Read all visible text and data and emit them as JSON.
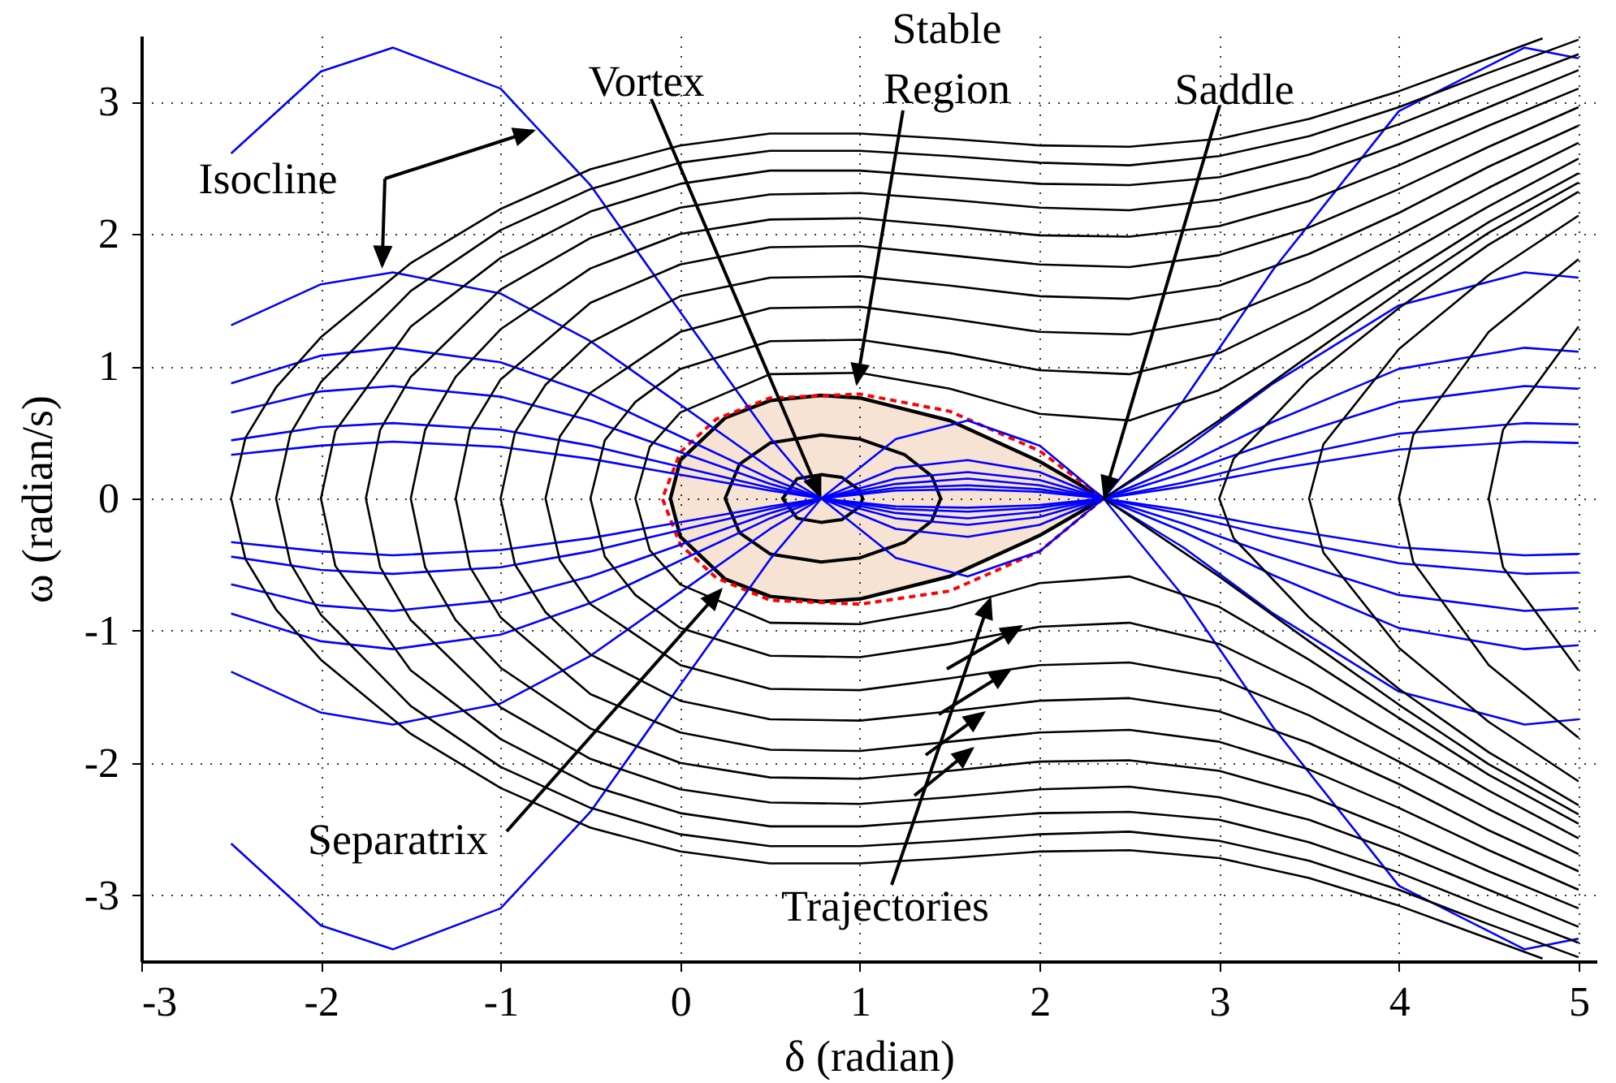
{
  "chart_data": {
    "type": "line",
    "xlabel": "δ  (radian)",
    "ylabel": "ω (radian/s)",
    "xlim": [
      -3,
      5.1
    ],
    "ylim": [
      -3.5,
      3.5
    ],
    "xticks": [
      -3,
      -2,
      -1,
      0,
      1,
      2,
      3,
      4,
      5
    ],
    "yticks": [
      -3,
      -2,
      -1,
      0,
      1,
      2,
      3
    ],
    "grid": true,
    "annotations": [
      {
        "text": "Isocline",
        "x": -1.66,
        "y": 1.74
      },
      {
        "text": "Vortex",
        "x": 0.785,
        "y": 0
      },
      {
        "text": "Stable Region",
        "x": 0.98,
        "y": 0.85
      },
      {
        "text": "Saddle",
        "x": 2.356,
        "y": 0
      },
      "Separatrix",
      {
        "text": "Trajectories",
        "x": 1.73,
        "y": -0.74
      }
    ],
    "series": [
      {
        "color": "#0000ff",
        "x": [
          -2.5,
          -2,
          -1.6,
          -1,
          -0.5,
          0,
          0.5,
          0.785,
          1.2,
          1.6,
          2,
          2.356,
          2.8,
          3.3,
          4,
          4.7,
          5
        ],
        "values": [
          2.61,
          3.23,
          3.41,
          3.1,
          2.37,
          1.41,
          0.46,
          0,
          -0.45,
          -0.59,
          -0.4,
          0,
          0.74,
          1.73,
          2.93,
          3.41,
          3.33
        ]
      },
      {
        "color": "#0000ff",
        "x": [
          -2.5,
          -2,
          -1.6,
          -1,
          -0.5,
          0,
          0.5,
          0.785,
          1.2,
          1.6,
          2,
          2.356,
          2.8,
          3.3,
          4,
          4.7,
          5
        ],
        "values": [
          -2.61,
          -3.23,
          -3.41,
          -3.1,
          -2.37,
          -1.41,
          -0.46,
          0,
          0.45,
          0.59,
          0.4,
          0,
          -0.74,
          -1.73,
          -2.93,
          -3.41,
          -3.33
        ]
      },
      {
        "color": "#0000ff",
        "x": [
          -2.5,
          -2,
          -1.6,
          -1,
          -0.5,
          0,
          0.5,
          0.785,
          1.2,
          1.6,
          2,
          2.356,
          2.8,
          3.3,
          4,
          4.7,
          5
        ],
        "values": [
          1.31,
          1.62,
          1.71,
          1.55,
          1.19,
          0.71,
          0.23,
          0,
          -0.23,
          -0.29,
          -0.2,
          0,
          0.37,
          0.87,
          1.46,
          1.71,
          1.67
        ]
      },
      {
        "color": "#0000ff",
        "x": [
          -2.5,
          -2,
          -1.6,
          -1,
          -0.5,
          0,
          0.5,
          0.785,
          1.2,
          1.6,
          2,
          2.356,
          2.8,
          3.3,
          4,
          4.7,
          5
        ],
        "values": [
          -1.31,
          -1.62,
          -1.71,
          -1.55,
          -1.19,
          -0.71,
          -0.23,
          0,
          0.23,
          0.29,
          0.2,
          0,
          -0.37,
          -0.87,
          -1.46,
          -1.71,
          -1.67
        ]
      },
      {
        "color": "#0000ff",
        "x": [
          -2.5,
          -2,
          -1.6,
          -1,
          -0.5,
          0,
          0.5,
          0.785,
          1.2,
          1.6,
          2,
          2.356,
          2.8,
          3.3,
          4,
          4.7,
          5
        ],
        "values": [
          0.87,
          1.08,
          1.14,
          1.03,
          0.79,
          0.47,
          0.15,
          0,
          -0.15,
          -0.2,
          -0.14,
          0,
          0.25,
          0.58,
          0.98,
          1.14,
          1.11
        ]
      },
      {
        "color": "#0000ff",
        "x": [
          -2.5,
          -2,
          -1.6,
          -1,
          -0.5,
          0,
          0.5,
          0.785,
          1.2,
          1.6,
          2,
          2.356,
          2.8,
          3.3,
          4,
          4.7,
          5
        ],
        "values": [
          -0.87,
          -1.08,
          -1.14,
          -1.03,
          -0.79,
          -0.47,
          -0.15,
          0,
          0.15,
          0.2,
          0.14,
          0,
          -0.25,
          -0.58,
          -0.98,
          -1.14,
          -1.11
        ]
      },
      {
        "color": "#0000ff",
        "x": [
          -2.5,
          -2,
          -1.6,
          -1,
          -0.5,
          0,
          0.5,
          0.785,
          1.2,
          1.6,
          2,
          2.356,
          2.8,
          3.3,
          4,
          4.7,
          5
        ],
        "values": [
          0.65,
          0.81,
          0.85,
          0.77,
          0.59,
          0.35,
          0.11,
          0,
          -0.11,
          -0.15,
          -0.1,
          0,
          0.19,
          0.43,
          0.73,
          0.85,
          0.83
        ]
      },
      {
        "color": "#0000ff",
        "x": [
          -2.5,
          -2,
          -1.6,
          -1,
          -0.5,
          0,
          0.5,
          0.785,
          1.2,
          1.6,
          2,
          2.356,
          2.8,
          3.3,
          4,
          4.7,
          5
        ],
        "values": [
          -0.65,
          -0.81,
          -0.85,
          -0.77,
          -0.59,
          -0.35,
          -0.11,
          0,
          0.11,
          0.15,
          0.1,
          0,
          -0.19,
          -0.43,
          -0.73,
          -0.85,
          -0.83
        ]
      },
      {
        "color": "#0000ff",
        "x": [
          -2.5,
          -2,
          -1.6,
          -1,
          -0.5,
          0,
          0.5,
          0.785,
          1.2,
          1.6,
          2,
          2.356,
          2.8,
          3.3,
          4,
          4.7,
          5
        ],
        "values": [
          0.44,
          0.54,
          0.57,
          0.52,
          0.4,
          0.24,
          0.08,
          0,
          -0.08,
          -0.1,
          -0.07,
          0,
          0.12,
          0.29,
          0.49,
          0.57,
          0.56
        ]
      },
      {
        "color": "#0000ff",
        "x": [
          -2.5,
          -2,
          -1.6,
          -1,
          -0.5,
          0,
          0.5,
          0.785,
          1.2,
          1.6,
          2,
          2.356,
          2.8,
          3.3,
          4,
          4.7,
          5
        ],
        "values": [
          -0.44,
          -0.54,
          -0.57,
          -0.52,
          -0.4,
          -0.24,
          -0.08,
          0,
          0.08,
          0.1,
          0.07,
          0,
          -0.12,
          -0.29,
          -0.49,
          -0.57,
          -0.56
        ]
      },
      {
        "color": "#0000ff",
        "x": [
          -2.5,
          -2,
          -1.6,
          -1,
          -0.5,
          0,
          0.5,
          0.785,
          1.2,
          1.6,
          2,
          2.356,
          2.8,
          3.3,
          4,
          4.7,
          5
        ],
        "values": [
          0.33,
          0.4,
          0.43,
          0.39,
          0.3,
          0.18,
          0.06,
          0,
          -0.06,
          -0.07,
          -0.05,
          0,
          0.09,
          0.22,
          0.37,
          0.43,
          0.42
        ]
      },
      {
        "color": "#0000ff",
        "x": [
          -2.5,
          -2,
          -1.6,
          -1,
          -0.5,
          0,
          0.5,
          0.785,
          1.2,
          1.6,
          2,
          2.356,
          2.8,
          3.3,
          4,
          4.7,
          5
        ],
        "values": [
          -0.33,
          -0.4,
          -0.43,
          -0.39,
          -0.3,
          -0.18,
          -0.06,
          0,
          0.06,
          0.07,
          0.05,
          0,
          -0.09,
          -0.22,
          -0.37,
          -0.43,
          -0.42
        ]
      },
      {
        "color": "#000000",
        "x": [
          4.8,
          4.5,
          4,
          3.5,
          3,
          2.5,
          2,
          1.5,
          1,
          0.5,
          0,
          -0.5,
          -1,
          -1.5,
          -2,
          -2.25,
          -2.42,
          -2.5,
          -2.42,
          -2.25,
          -2,
          -1.5,
          -1,
          -0.5,
          0,
          0.5,
          1,
          1.5,
          2,
          2.5,
          3,
          3.5,
          4,
          4.5,
          4.8
        ],
        "values": [
          -3.48,
          -3.33,
          -3.08,
          -2.87,
          -2.72,
          -2.66,
          -2.67,
          -2.72,
          -2.76,
          -2.76,
          -2.67,
          -2.49,
          -2.19,
          -1.78,
          -1.22,
          -0.84,
          -0.46,
          0,
          0.46,
          0.84,
          1.22,
          1.78,
          2.19,
          2.49,
          2.67,
          2.76,
          2.76,
          2.72,
          2.67,
          2.66,
          2.72,
          2.87,
          3.08,
          3.33,
          3.48
        ]
      },
      {
        "color": "#000000",
        "x": [
          5,
          4.5,
          4,
          3.5,
          3,
          2.5,
          2,
          1.5,
          1,
          0.5,
          0,
          -0.5,
          -1,
          -1.5,
          -2,
          -2.17,
          -2.25,
          -2.17,
          -2,
          -1.5,
          -1,
          -0.5,
          0,
          0.5,
          1,
          1.5,
          2,
          2.5,
          3,
          3.5,
          4,
          4.5,
          5
        ],
        "values": [
          -3.47,
          -3.22,
          -2.96,
          -2.74,
          -2.59,
          -2.52,
          -2.54,
          -2.59,
          -2.63,
          -2.63,
          -2.54,
          -2.34,
          -2.03,
          -1.57,
          -0.88,
          -0.49,
          0,
          0.49,
          0.88,
          1.57,
          2.03,
          2.34,
          2.54,
          2.63,
          2.63,
          2.59,
          2.54,
          2.52,
          2.59,
          2.74,
          2.96,
          3.22,
          3.47
        ]
      },
      {
        "color": "#000000",
        "x": [
          5,
          4.5,
          4,
          3.5,
          3,
          2.5,
          2,
          1.5,
          1,
          0.5,
          0,
          -0.5,
          -1,
          -1.5,
          -1.92,
          -2,
          -1.92,
          -1.5,
          -1,
          -0.5,
          0,
          0.5,
          1,
          1.5,
          2,
          2.5,
          3,
          3.5,
          4,
          4.5,
          5
        ],
        "values": [
          -3.36,
          -3.1,
          -2.83,
          -2.6,
          -2.43,
          -2.37,
          -2.38,
          -2.43,
          -2.48,
          -2.48,
          -2.38,
          -2.17,
          -1.82,
          -1.3,
          -0.51,
          0,
          0.51,
          1.3,
          1.82,
          2.17,
          2.38,
          2.48,
          2.48,
          2.43,
          2.38,
          2.37,
          2.43,
          2.6,
          2.83,
          3.1,
          3.36
        ]
      },
      {
        "color": "#000000",
        "x": [
          5,
          4.5,
          4,
          3.5,
          3,
          2.5,
          2,
          1.5,
          1,
          0.5,
          0,
          -0.5,
          -1,
          -1.5,
          -1.67,
          -1.75,
          -1.67,
          -1.5,
          -1,
          -0.5,
          0,
          0.5,
          1,
          1.5,
          2,
          2.5,
          3,
          3.5,
          4,
          4.5,
          5
        ],
        "values": [
          -3.24,
          -2.96,
          -2.68,
          -2.43,
          -2.26,
          -2.18,
          -2.2,
          -2.26,
          -2.31,
          -2.3,
          -2.2,
          -1.97,
          -1.58,
          -0.92,
          -0.52,
          0,
          0.52,
          0.92,
          1.58,
          1.97,
          2.2,
          2.3,
          2.31,
          2.26,
          2.2,
          2.18,
          2.26,
          2.43,
          2.68,
          2.96,
          3.24
        ]
      },
      {
        "color": "#000000",
        "x": [
          5,
          4.5,
          4,
          3.5,
          3,
          2.5,
          2,
          1.5,
          1,
          0.5,
          0,
          -0.5,
          -1,
          -1.25,
          -1.42,
          -1.5,
          -1.42,
          -1.25,
          -1,
          -0.5,
          0,
          0.5,
          1,
          1.5,
          2,
          2.5,
          3,
          3.5,
          4,
          4.5,
          5
        ],
        "values": [
          -3.1,
          -2.82,
          -2.52,
          -2.25,
          -2.06,
          -1.98,
          -1.99,
          -2.06,
          -2.12,
          -2.11,
          -2,
          -1.74,
          -1.28,
          -0.92,
          -0.52,
          0,
          0.52,
          0.92,
          1.28,
          1.74,
          2,
          2.11,
          2.12,
          2.06,
          1.99,
          1.98,
          2.06,
          2.25,
          2.52,
          2.82,
          3.1
        ]
      },
      {
        "color": "#000000",
        "x": [
          5,
          4.5,
          4,
          3.5,
          3,
          2.5,
          2,
          1.5,
          1,
          0.5,
          0,
          -0.5,
          -1,
          -1.17,
          -1.25,
          -1.17,
          -1,
          -0.5,
          0,
          0.5,
          1,
          1.5,
          2,
          2.5,
          3,
          3.5,
          4,
          4.5,
          5
        ],
        "values": [
          -2.96,
          -2.66,
          -2.34,
          -2.05,
          -1.84,
          -1.75,
          -1.77,
          -1.84,
          -1.91,
          -1.9,
          -1.77,
          -1.48,
          -0.9,
          -0.52,
          0,
          0.52,
          0.9,
          1.48,
          1.77,
          1.9,
          1.91,
          1.84,
          1.77,
          1.75,
          1.84,
          2.05,
          2.34,
          2.66,
          2.96
        ]
      },
      {
        "color": "#000000",
        "x": [
          5,
          4.5,
          4,
          3.5,
          3,
          2.5,
          2,
          1.5,
          1,
          0.5,
          0,
          -0.5,
          -0.75,
          -0.92,
          -1,
          -0.92,
          -0.75,
          -0.5,
          0,
          0.5,
          1,
          1.5,
          2,
          2.5,
          3,
          3.5,
          4,
          4.5,
          5
        ],
        "values": [
          -2.82,
          -2.51,
          -2.16,
          -1.85,
          -1.61,
          -1.51,
          -1.53,
          -1.61,
          -1.68,
          -1.67,
          -1.53,
          -1.18,
          -0.86,
          -0.5,
          0,
          0.5,
          0.86,
          1.18,
          1.53,
          1.67,
          1.68,
          1.61,
          1.53,
          1.51,
          1.61,
          1.85,
          2.16,
          2.51,
          2.82
        ]
      },
      {
        "color": "#000000",
        "x": [
          5,
          4.5,
          4,
          3.5,
          3,
          2.5,
          2,
          1.5,
          1,
          0.5,
          0,
          -0.5,
          -0.67,
          -0.75,
          -0.67,
          -0.5,
          0,
          0.5,
          1,
          1.5,
          2,
          2.5,
          3,
          3.5,
          4,
          4.5,
          5
        ],
        "values": [
          -2.69,
          -2.35,
          -1.99,
          -1.64,
          -1.36,
          -1.24,
          -1.26,
          -1.36,
          -1.45,
          -1.44,
          -1.26,
          -0.8,
          -0.47,
          0,
          0.47,
          0.8,
          1.26,
          1.44,
          1.45,
          1.36,
          1.26,
          1.24,
          1.36,
          1.64,
          1.99,
          2.35,
          2.69
        ]
      },
      {
        "color": "#000000",
        "x": [
          5,
          4.5,
          4,
          3.5,
          3,
          2.5,
          2,
          1.5,
          1,
          0.5,
          0,
          -0.25,
          -0.42,
          -0.5,
          -0.42,
          -0.25,
          0,
          0.5,
          1,
          1.5,
          2,
          2.5,
          3,
          3.5,
          4,
          4.5,
          5
        ],
        "values": [
          -2.57,
          -2.21,
          -1.82,
          -1.43,
          -1.1,
          -0.94,
          -0.97,
          -1.1,
          -1.2,
          -1.19,
          -0.98,
          -0.73,
          -0.44,
          0,
          0.44,
          0.73,
          0.98,
          1.19,
          1.2,
          1.1,
          0.97,
          0.94,
          1.1,
          1.43,
          1.82,
          2.21,
          2.57
        ]
      },
      {
        "color": "#000000",
        "x": [
          5,
          4.5,
          4,
          3.5,
          3,
          2.5,
          2,
          1.5,
          1,
          0.5,
          0,
          -0.17,
          -0.25,
          -0.17,
          0,
          0.5,
          1,
          1.5,
          2,
          2.5,
          3,
          3.5,
          4,
          4.5,
          5
        ],
        "values": [
          -2.46,
          -2.09,
          -1.66,
          -1.22,
          -0.82,
          -0.59,
          -0.64,
          -0.83,
          -0.95,
          -0.94,
          -0.65,
          -0.39,
          0,
          0.39,
          0.65,
          0.94,
          0.95,
          0.83,
          0.64,
          0.59,
          0.82,
          1.22,
          1.66,
          2.09,
          2.46
        ]
      },
      {
        "color": "#000000",
        "x": [
          5,
          4.5,
          4,
          3.5,
          3.08,
          3,
          3.08,
          3.5,
          4,
          4.5,
          5
        ],
        "values": [
          -2.32,
          -1.92,
          -1.44,
          -0.9,
          -0.3,
          0,
          0.3,
          0.9,
          1.44,
          1.92,
          2.32
        ]
      },
      {
        "color": "#000000",
        "x": [
          5,
          4.5,
          4,
          3.58,
          3.5,
          3.58,
          4,
          4.5,
          5
        ],
        "values": [
          -2.14,
          -1.69,
          -1.13,
          -0.41,
          0,
          0.41,
          1.13,
          1.69,
          2.14
        ]
      },
      {
        "color": "#000000",
        "x": [
          5,
          4.5,
          4.08,
          4,
          4.08,
          4.5,
          5
        ],
        "values": [
          -1.81,
          -1.26,
          -0.48,
          0,
          0.48,
          1.26,
          1.81
        ]
      },
      {
        "color": "#000000",
        "x": [
          5,
          4.58,
          4.5,
          4.58,
          5
        ],
        "values": [
          -1.3,
          -0.52,
          0,
          0.52,
          1.3
        ]
      },
      {
        "color": "#000000",
        "x": [
          5,
          4.5,
          4,
          3.5,
          3,
          2.5,
          2.356,
          2.5,
          3,
          3.5,
          4,
          4.5,
          5
        ],
        "values": [
          -2.39,
          -2.01,
          -1.56,
          -1.08,
          -0.59,
          -0.13,
          0,
          0.13,
          0.59,
          1.08,
          1.56,
          2.01,
          2.39
        ]
      }
    ]
  }
}
